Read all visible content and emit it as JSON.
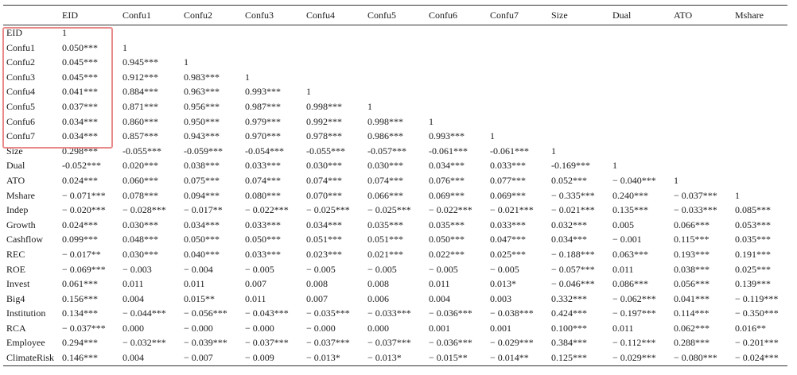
{
  "columns": [
    "",
    "EID",
    "Confu1",
    "Confu2",
    "Confu3",
    "Confu4",
    "Confu5",
    "Confu6",
    "Confu7",
    "Size",
    "Dual",
    "ATO",
    "Mshare"
  ],
  "rows": [
    {
      "label": "EID",
      "cells": [
        "1"
      ]
    },
    {
      "label": "Confu1",
      "cells": [
        "0.050***",
        "1"
      ]
    },
    {
      "label": "Confu2",
      "cells": [
        "0.045***",
        "0.945***",
        "1"
      ]
    },
    {
      "label": "Confu3",
      "cells": [
        "0.045***",
        "0.912***",
        "0.983***",
        "1"
      ]
    },
    {
      "label": "Confu4",
      "cells": [
        "0.041***",
        "0.884***",
        "0.963***",
        "0.993***",
        "1"
      ]
    },
    {
      "label": "Confu5",
      "cells": [
        "0.037***",
        "0.871***",
        "0.956***",
        "0.987***",
        "0.998***",
        "1"
      ]
    },
    {
      "label": "Confu6",
      "cells": [
        "0.034***",
        "0.860***",
        "0.950***",
        "0.979***",
        "0.992***",
        "0.998***",
        "1"
      ]
    },
    {
      "label": "Confu7",
      "cells": [
        "0.034***",
        "0.857***",
        "0.943***",
        "0.970***",
        "0.978***",
        "0.986***",
        "0.993***",
        "1"
      ]
    },
    {
      "label": "Size",
      "cells": [
        "0.298***",
        "-0.055***",
        "-0.059***",
        "-0.054***",
        "-0.055***",
        "-0.057***",
        "-0.061***",
        "-0.061***",
        "1"
      ]
    },
    {
      "label": "Dual",
      "cells": [
        "-0.052***",
        "0.020***",
        "0.038***",
        "0.033***",
        "0.030***",
        "0.030***",
        "0.034***",
        "0.033***",
        "-0.169***",
        "1"
      ]
    },
    {
      "label": "ATO",
      "cells": [
        "0.024***",
        "0.060***",
        "0.075***",
        "0.074***",
        "0.074***",
        "0.074***",
        "0.076***",
        "0.077***",
        "0.052***",
        "− 0.040***",
        "1"
      ]
    },
    {
      "label": "Mshare",
      "cells": [
        "− 0.071***",
        "0.078***",
        "0.094***",
        "0.080***",
        "0.070***",
        "0.066***",
        "0.069***",
        "0.069***",
        "− 0.335***",
        "0.240***",
        "− 0.037***",
        "1"
      ]
    },
    {
      "label": "Indep",
      "cells": [
        "− 0.020***",
        "− 0.028***",
        "− 0.017**",
        "− 0.022***",
        "− 0.025***",
        "− 0.025***",
        "− 0.022***",
        "− 0.021***",
        "− 0.021***",
        "0.135***",
        "− 0.033***",
        "0.085***"
      ]
    },
    {
      "label": "Growth",
      "cells": [
        "0.024***",
        "0.030***",
        "0.034***",
        "0.033***",
        "0.034***",
        "0.035***",
        "0.035***",
        "0.033***",
        "0.032***",
        "0.005",
        "0.066***",
        "0.053***"
      ]
    },
    {
      "label": "Cashflow",
      "cells": [
        "0.099***",
        "0.048***",
        "0.050***",
        "0.050***",
        "0.051***",
        "0.051***",
        "0.050***",
        "0.047***",
        "0.034***",
        "− 0.001",
        "0.115***",
        "0.035***"
      ]
    },
    {
      "label": "REC",
      "cells": [
        "− 0.017**",
        "0.030***",
        "0.040***",
        "0.033***",
        "0.023***",
        "0.021***",
        "0.022***",
        "0.025***",
        "− 0.188***",
        "0.063***",
        "0.193***",
        "0.191***"
      ]
    },
    {
      "label": "ROE",
      "cells": [
        "− 0.069***",
        "− 0.003",
        "− 0.004",
        "− 0.005",
        "− 0.005",
        "− 0.005",
        "− 0.005",
        "− 0.005",
        "− 0.057***",
        "0.011",
        "0.038***",
        "0.025***"
      ]
    },
    {
      "label": "Invest",
      "cells": [
        "0.061***",
        "0.011",
        "0.011",
        "0.007",
        "0.008",
        "0.008",
        "0.011",
        "0.013*",
        "− 0.046***",
        "0.086***",
        "0.056***",
        "0.139***"
      ]
    },
    {
      "label": "Big4",
      "cells": [
        "0.156***",
        "0.004",
        "0.015**",
        "0.011",
        "0.007",
        "0.006",
        "0.004",
        "0.003",
        "0.332***",
        "− 0.062***",
        "0.041***",
        "− 0.119***"
      ]
    },
    {
      "label": "Institution",
      "cells": [
        "0.134***",
        "− 0.044***",
        "− 0.056***",
        "− 0.043***",
        "− 0.035***",
        "− 0.033***",
        "− 0.036***",
        "− 0.038***",
        "0.424***",
        "− 0.197***",
        "0.114***",
        "− 0.350***"
      ]
    },
    {
      "label": "RCA",
      "cells": [
        "− 0.037***",
        "0.000",
        "− 0.000",
        "− 0.000",
        "− 0.000",
        "0.000",
        "0.001",
        "0.001",
        "0.100***",
        "0.011",
        "0.062***",
        "0.016**"
      ]
    },
    {
      "label": "Employee",
      "cells": [
        "0.294***",
        "− 0.032***",
        "− 0.039***",
        "− 0.037***",
        "− 0.037***",
        "− 0.037***",
        "− 0.036***",
        "− 0.029***",
        "0.384***",
        "− 0.112***",
        "0.288***",
        "− 0.201***"
      ]
    },
    {
      "label": "ClimateRisk",
      "cells": [
        "0.146***",
        "0.004",
        "− 0.007",
        "− 0.009",
        "− 0.013*",
        "− 0.013*",
        "− 0.015**",
        "− 0.014**",
        "0.125***",
        "− 0.029***",
        "− 0.080***",
        "− 0.024***"
      ]
    }
  ]
}
